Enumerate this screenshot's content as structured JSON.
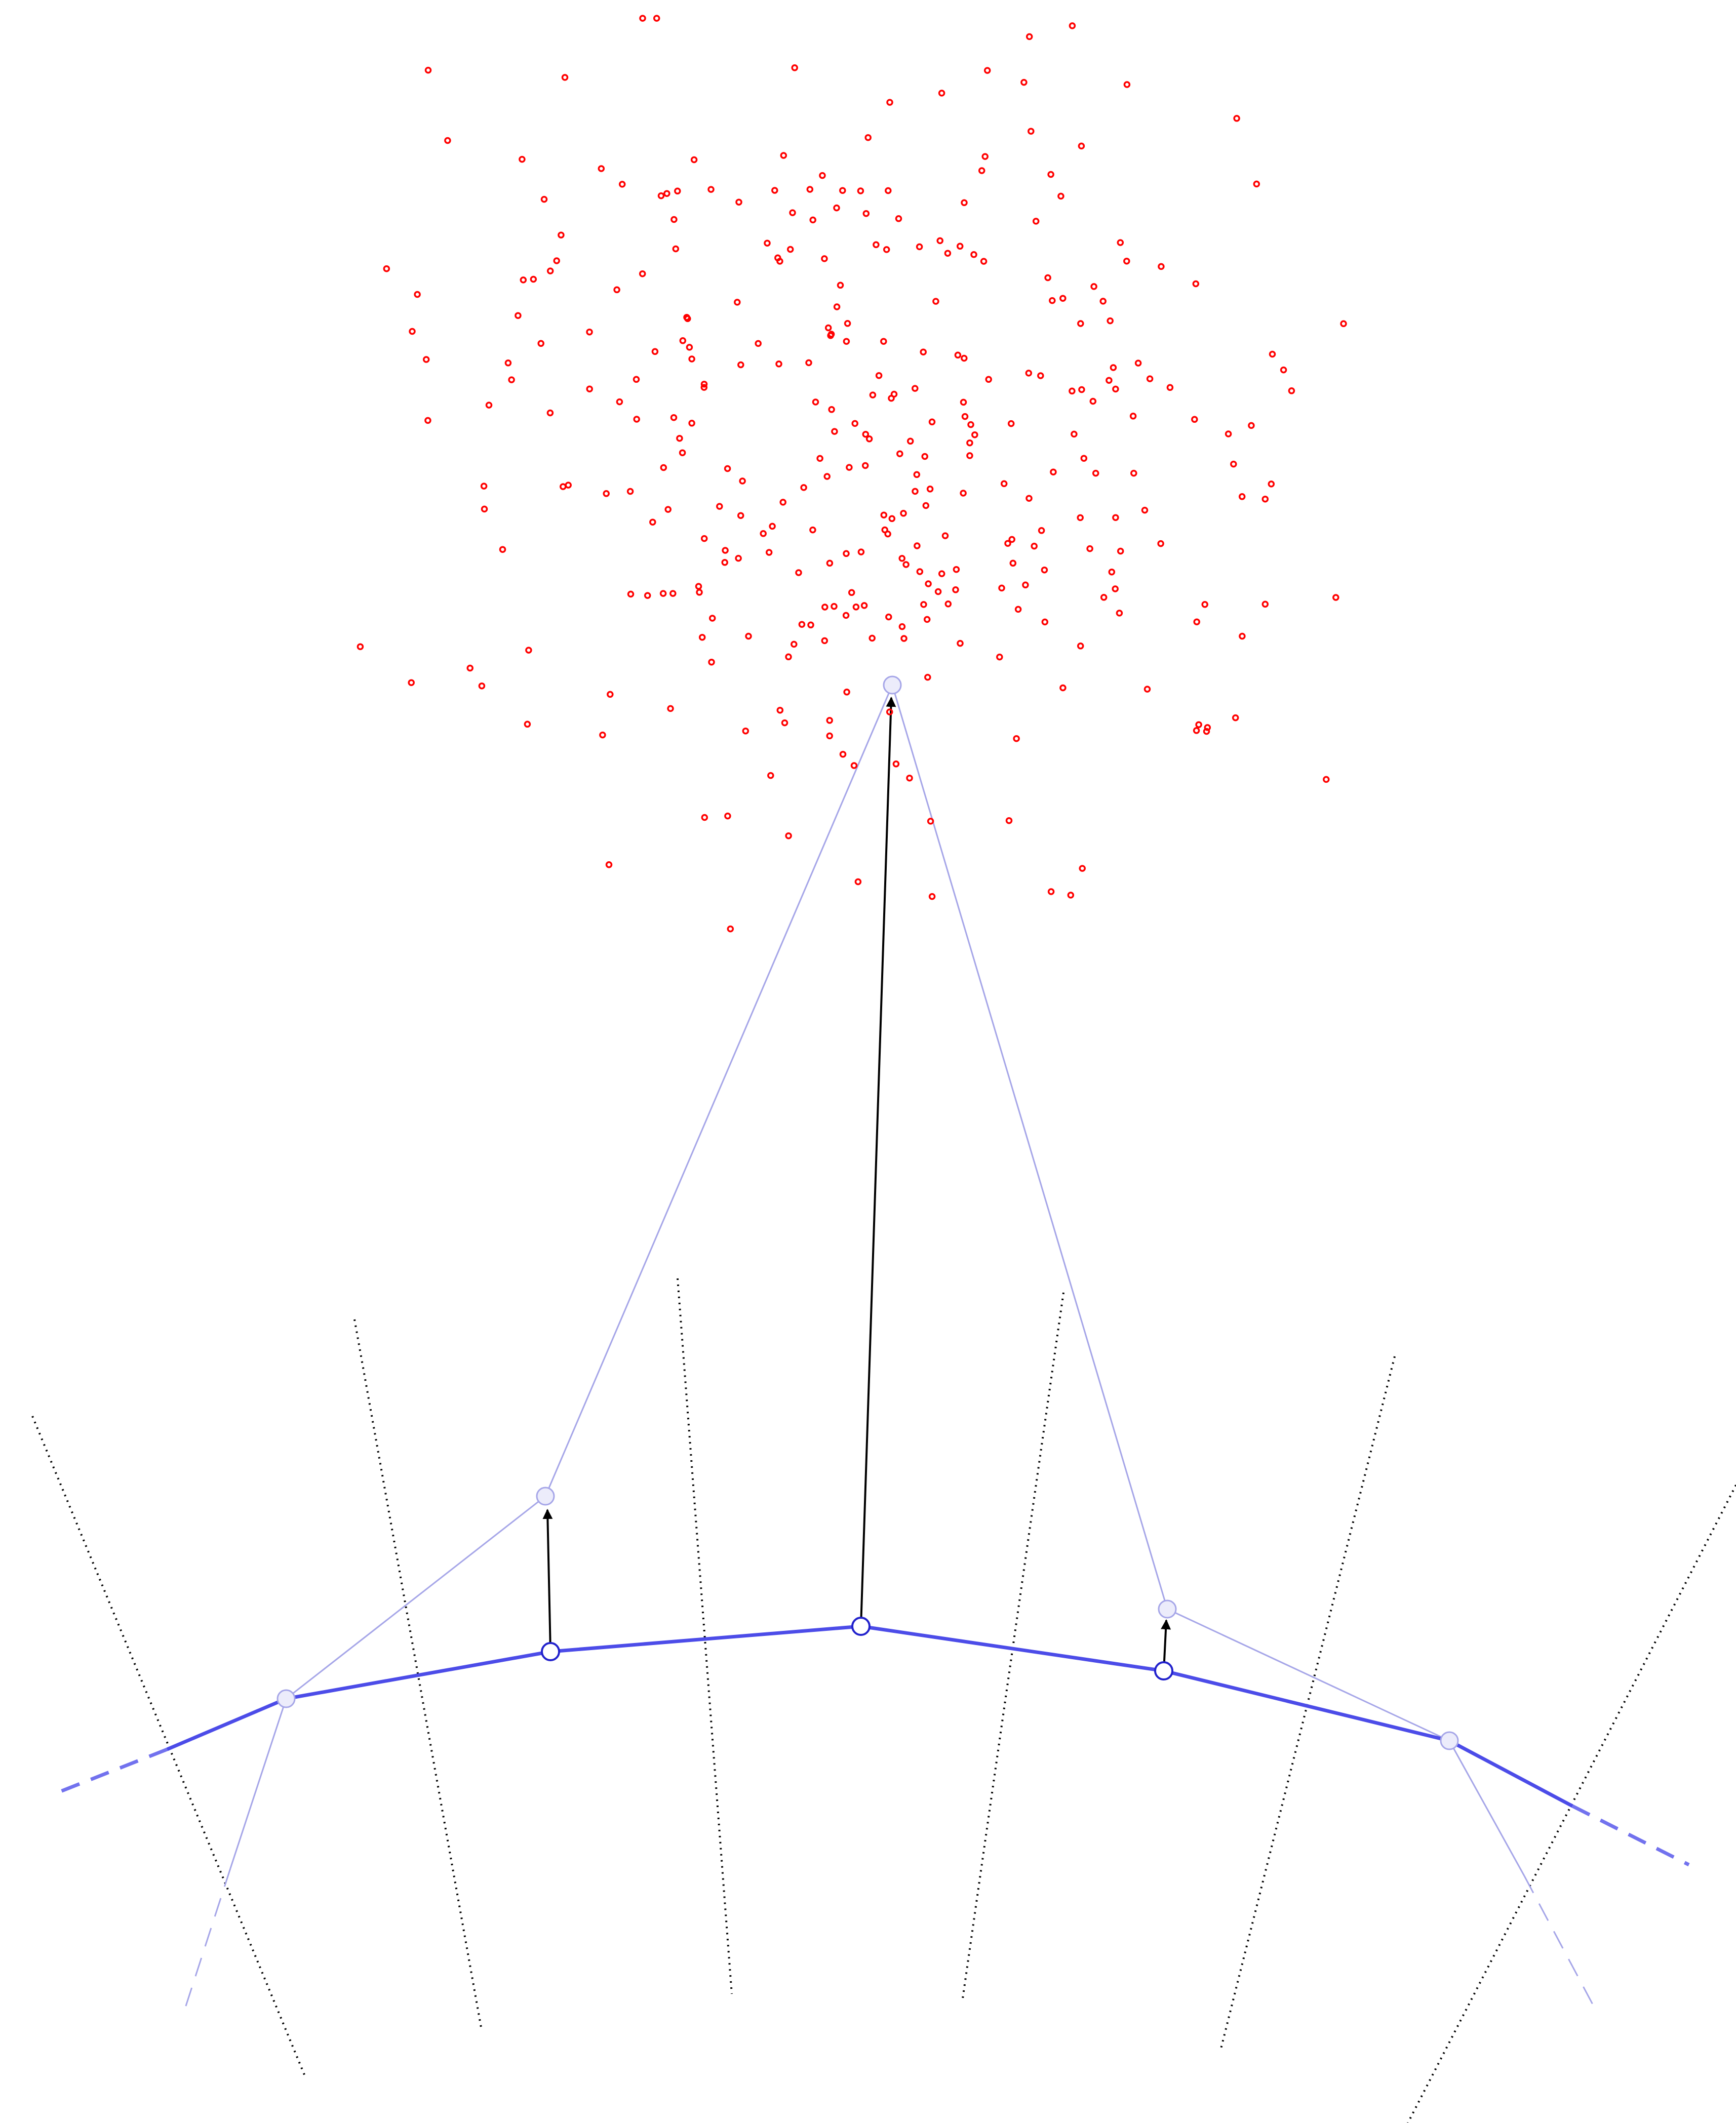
{
  "colors": {
    "background": "#ffffff",
    "points": "#ff0000",
    "curve": "#4c4ce8",
    "faint": "#a6a6e8",
    "arrow": "#000000",
    "dotted": "#000000"
  }
}
